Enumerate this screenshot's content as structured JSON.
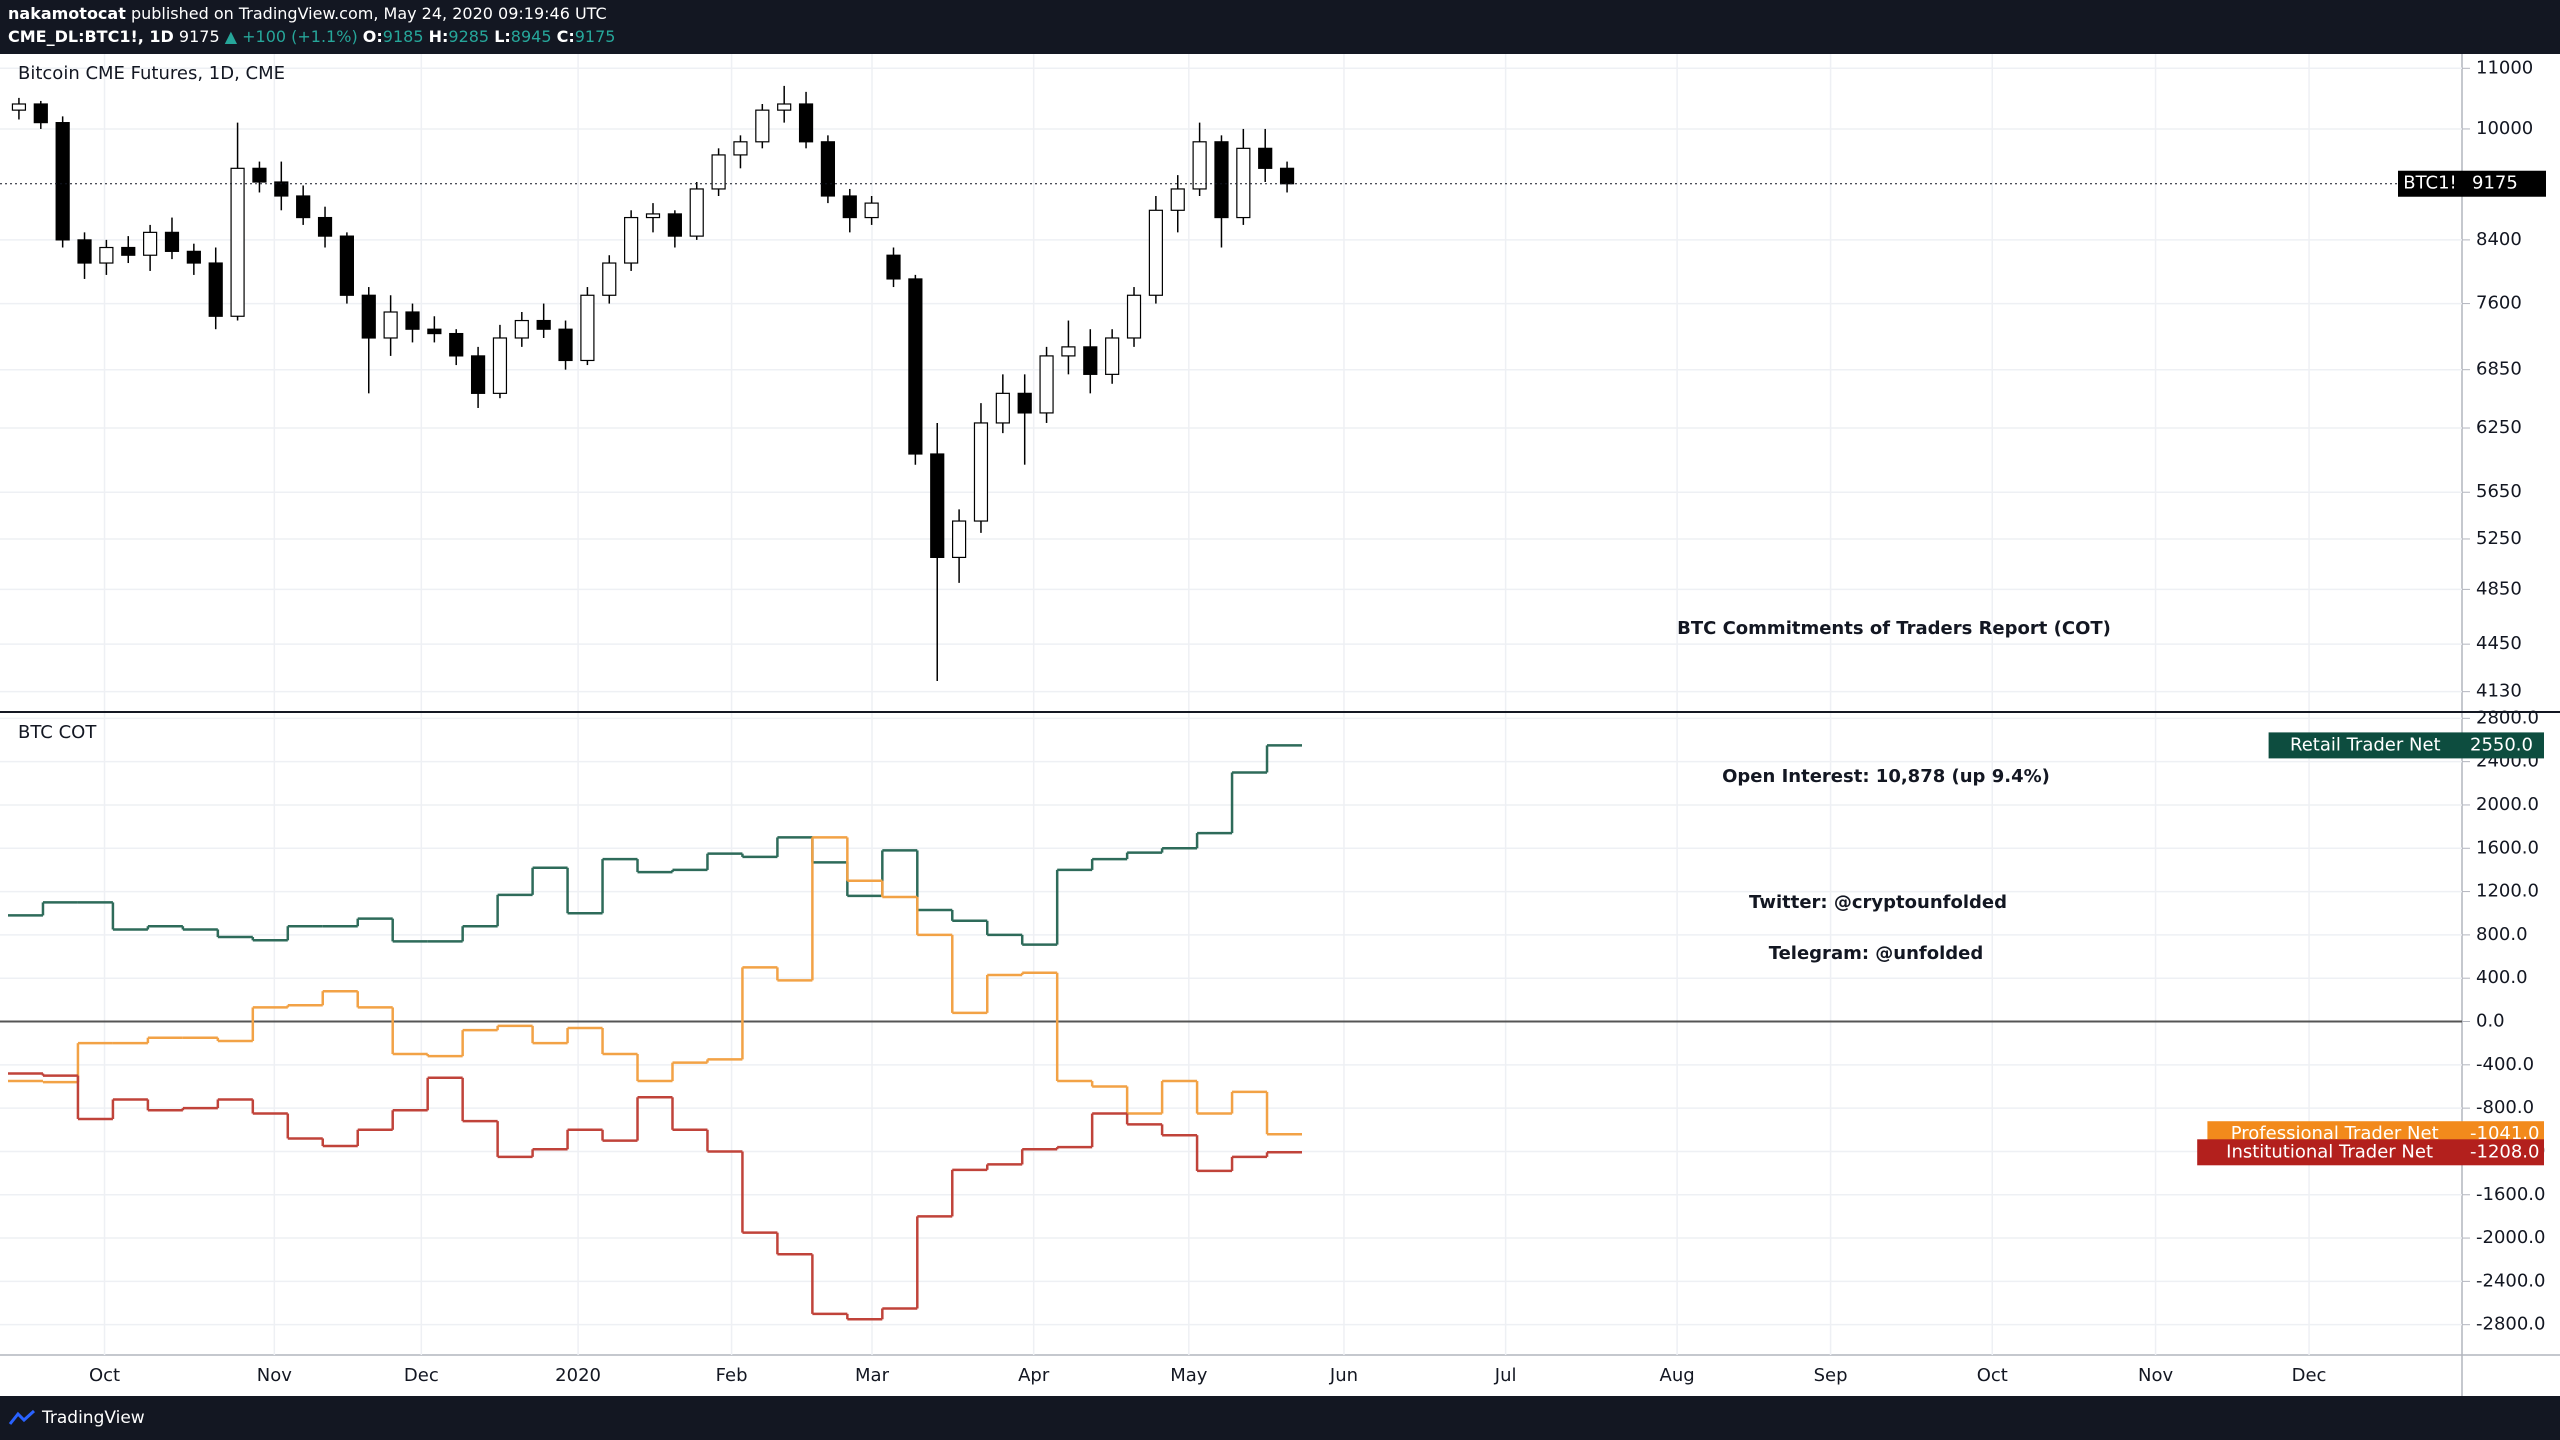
{
  "header": {
    "author": "nakamotocat",
    "published": "published on TradingView.com, May 24, 2020 09:19:46 UTC",
    "symbol": "CME_DL:BTC1!, 1D",
    "last": "9175",
    "change": "▲ +100 (+1.1%)",
    "open_label": "O:",
    "open": "9185",
    "high_label": "H:",
    "high": "9285",
    "low_label": "L:",
    "low": "8945",
    "close_label": "C:",
    "close": "9175"
  },
  "time_axis": {
    "labels": [
      "Oct",
      "Nov",
      "Dec",
      "2020",
      "Feb",
      "Mar",
      "Apr",
      "May",
      "Jun",
      "Jul",
      "Aug",
      "Sep",
      "Oct",
      "Nov",
      "Dec"
    ]
  },
  "chart_data": [
    {
      "type": "candlestick",
      "title": "Bitcoin CME Futures, 1D, CME",
      "log": true,
      "grid": true,
      "ylim": [
        4000,
        11250
      ],
      "yticks": [
        4130,
        4450,
        4850,
        5250,
        5650,
        6250,
        6850,
        7600,
        8400,
        10000,
        11000
      ],
      "annotation": "BTC Commitments of Traders Report (COT)",
      "series": [
        {
          "name": "BTC1!",
          "up_color": "#ffffff",
          "down_color": "#000000",
          "ohlc": [
            [
              10300,
              10500,
              10150,
              10400
            ],
            [
              10400,
              10450,
              10000,
              10100
            ],
            [
              10100,
              10200,
              8300,
              8400
            ],
            [
              8400,
              8500,
              7900,
              8100
            ],
            [
              8100,
              8400,
              7950,
              8300
            ],
            [
              8300,
              8450,
              8100,
              8200
            ],
            [
              8200,
              8600,
              8000,
              8500
            ],
            [
              8500,
              8700,
              8150,
              8250
            ],
            [
              8250,
              8350,
              7950,
              8100
            ],
            [
              8100,
              8300,
              7300,
              7450
            ],
            [
              7450,
              10100,
              7400,
              9400
            ],
            [
              9400,
              9500,
              9050,
              9200
            ],
            [
              9200,
              9500,
              8800,
              9000
            ],
            [
              9000,
              9150,
              8600,
              8700
            ],
            [
              8700,
              8850,
              8300,
              8450
            ],
            [
              8450,
              8500,
              7600,
              7700
            ],
            [
              7700,
              7800,
              6600,
              7200
            ],
            [
              7200,
              7700,
              7000,
              7500
            ],
            [
              7500,
              7600,
              7150,
              7300
            ],
            [
              7300,
              7450,
              7150,
              7250
            ],
            [
              7250,
              7300,
              6900,
              7000
            ],
            [
              7000,
              7100,
              6450,
              6600
            ],
            [
              6600,
              7350,
              6550,
              7200
            ],
            [
              7200,
              7500,
              7100,
              7400
            ],
            [
              7400,
              7600,
              7200,
              7300
            ],
            [
              7300,
              7400,
              6850,
              6950
            ],
            [
              6950,
              7800,
              6900,
              7700
            ],
            [
              7700,
              8200,
              7600,
              8100
            ],
            [
              8100,
              8800,
              8000,
              8700
            ],
            [
              8700,
              8900,
              8500,
              8750
            ],
            [
              8750,
              8800,
              8300,
              8450
            ],
            [
              8450,
              9200,
              8400,
              9100
            ],
            [
              9100,
              9700,
              9000,
              9600
            ],
            [
              9600,
              9900,
              9400,
              9800
            ],
            [
              9800,
              10400,
              9700,
              10300
            ],
            [
              10300,
              10700,
              10100,
              10400
            ],
            [
              10400,
              10600,
              9700,
              9800
            ],
            [
              9800,
              9900,
              8900,
              9000
            ],
            [
              9000,
              9100,
              8500,
              8700
            ],
            [
              8700,
              9000,
              8600,
              8900
            ],
            [
              8200,
              8300,
              7800,
              7900
            ],
            [
              7900,
              7950,
              5900,
              6000
            ],
            [
              6000,
              6300,
              4200,
              5100
            ],
            [
              5100,
              5500,
              4900,
              5400
            ],
            [
              5400,
              6500,
              5300,
              6300
            ],
            [
              6300,
              6800,
              6200,
              6600
            ],
            [
              6600,
              6800,
              5900,
              6400
            ],
            [
              6400,
              7100,
              6300,
              7000
            ],
            [
              7000,
              7400,
              6800,
              7100
            ],
            [
              7100,
              7300,
              6600,
              6800
            ],
            [
              6800,
              7300,
              6700,
              7200
            ],
            [
              7200,
              7800,
              7100,
              7700
            ],
            [
              7700,
              9000,
              7600,
              8800
            ],
            [
              8800,
              9300,
              8500,
              9100
            ],
            [
              9100,
              10100,
              9000,
              9800
            ],
            [
              9800,
              9900,
              8300,
              8700
            ],
            [
              8700,
              10000,
              8600,
              9700
            ],
            [
              9700,
              10000,
              9200,
              9400
            ],
            [
              9400,
              9500,
              9050,
              9175
            ]
          ]
        }
      ]
    },
    {
      "type": "step",
      "title": "BTC COT",
      "grid": true,
      "ylim": [
        -3080,
        2840
      ],
      "yticks": [
        {
          "value": 2800,
          "label": "2800.0"
        },
        {
          "value": 2400,
          "label": "2400.0"
        },
        {
          "value": 2000,
          "label": "2000.0"
        },
        {
          "value": 1600,
          "label": "1600.0"
        },
        {
          "value": 1200,
          "label": "1200.0"
        },
        {
          "value": 800,
          "label": "800.0"
        },
        {
          "value": 400,
          "label": "400.0"
        },
        {
          "value": 0,
          "label": "0.0"
        },
        {
          "value": -400,
          "label": "-400.0"
        },
        {
          "value": -800,
          "label": "-800.0"
        },
        {
          "value": -1200,
          "label": "-1200.0"
        },
        {
          "value": -1600,
          "label": "-1600.0"
        },
        {
          "value": -2000,
          "label": "-2000.0"
        },
        {
          "value": -2400,
          "label": "-2400.0"
        },
        {
          "value": -2800,
          "label": "-2800.0"
        }
      ],
      "annotations": [
        "Open Interest: 10,878 (up 9.4%)",
        "Twitter: @cryptounfolded",
        "Telegram: @unfolded"
      ],
      "series": [
        {
          "name": "Retail Trader Net",
          "color": "#2e6b5a",
          "tag_color": "#0d4d3f",
          "values": [
            980,
            1100,
            1100,
            850,
            880,
            850,
            780,
            750,
            880,
            880,
            950,
            740,
            740,
            880,
            1170,
            1420,
            1000,
            1500,
            1380,
            1400,
            1550,
            1520,
            1700,
            1470,
            1160,
            1580,
            1030,
            930,
            800,
            710,
            1400,
            1500,
            1560,
            1600,
            1740,
            2300,
            2550
          ],
          "value_labels": [
            null,
            null,
            null,
            null,
            null,
            null,
            null,
            null,
            null,
            null,
            null,
            null,
            null,
            null,
            null,
            null,
            null,
            null,
            null,
            null,
            null,
            null,
            null,
            null,
            null,
            null,
            null,
            null,
            null,
            null,
            null,
            null,
            null,
            null,
            null,
            null,
            "2550.0"
          ]
        },
        {
          "name": "Professional Trader Net",
          "color": "#f2a246",
          "tag_color": "#f28a1c",
          "values": [
            -550,
            -560,
            -200,
            -200,
            -150,
            -150,
            -180,
            130,
            150,
            280,
            130,
            -300,
            -320,
            -80,
            -40,
            -200,
            -60,
            -300,
            -550,
            -380,
            -350,
            500,
            380,
            1700,
            1300,
            1150,
            800,
            80,
            430,
            450,
            -550,
            -600,
            -850,
            -550,
            -850,
            -650,
            -1041
          ],
          "value_labels": [
            null,
            null,
            null,
            null,
            null,
            null,
            null,
            null,
            null,
            null,
            null,
            null,
            null,
            null,
            null,
            null,
            null,
            null,
            null,
            null,
            null,
            null,
            null,
            null,
            null,
            null,
            null,
            null,
            null,
            null,
            null,
            null,
            null,
            null,
            null,
            null,
            "-1041.0"
          ]
        },
        {
          "name": "Institutional Trader Net",
          "color": "#c0433a",
          "tag_color": "#b3201d",
          "values": [
            -480,
            -500,
            -900,
            -720,
            -820,
            -800,
            -720,
            -850,
            -1080,
            -1150,
            -1000,
            -820,
            -520,
            -920,
            -1250,
            -1180,
            -1000,
            -1100,
            -700,
            -1000,
            -1200,
            -1950,
            -2150,
            -2700,
            -2750,
            -2650,
            -1800,
            -1370,
            -1320,
            -1180,
            -1160,
            -850,
            -950,
            -1050,
            -1380,
            -1250,
            -1208
          ],
          "value_labels": [
            null,
            null,
            null,
            null,
            null,
            null,
            null,
            null,
            null,
            null,
            null,
            null,
            null,
            null,
            null,
            null,
            null,
            null,
            null,
            null,
            null,
            null,
            null,
            null,
            null,
            null,
            null,
            null,
            null,
            null,
            null,
            null,
            null,
            null,
            null,
            null,
            "-1208.0"
          ]
        }
      ]
    }
  ],
  "footer": {
    "brand": "TradingView"
  }
}
